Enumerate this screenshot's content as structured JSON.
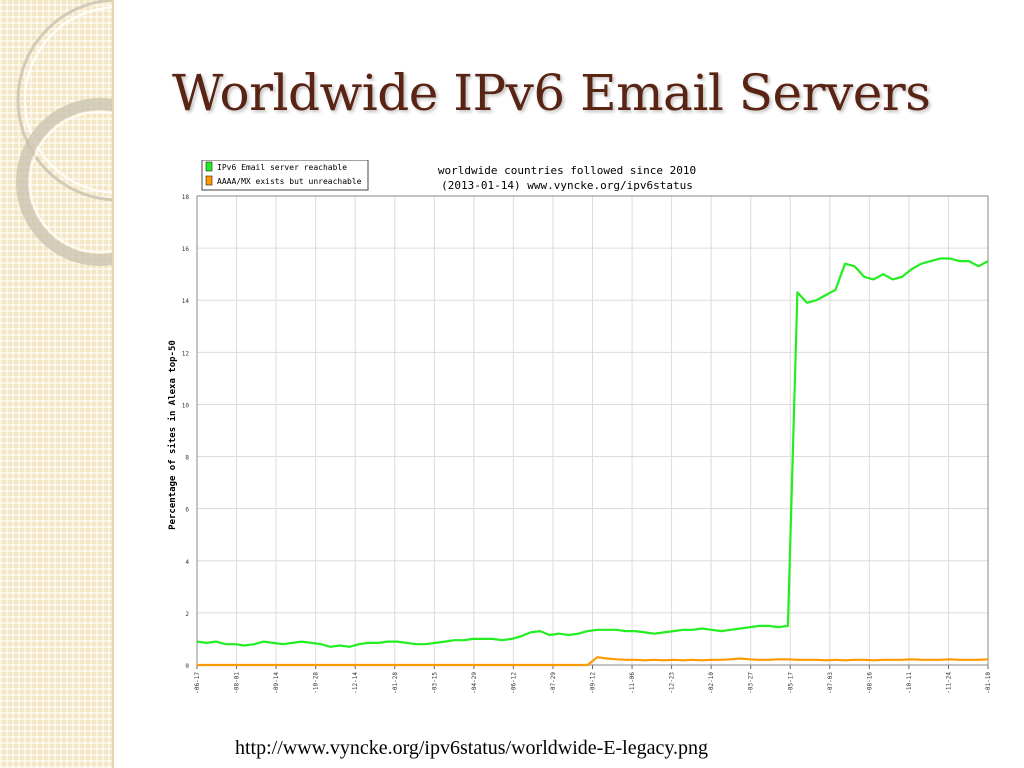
{
  "slide": {
    "title": "Worldwide IPv6 Email Servers",
    "source_url": "http://www.vyncke.org/ipv6status/worldwide-E-legacy.png"
  },
  "colors": {
    "title": "#5a2414",
    "sidebar": "#f3e6c4",
    "reachable": "#22ee22",
    "unreachable": "#ff9900",
    "grid": "#dcdcdc"
  },
  "chart_data": {
    "type": "line",
    "title": "worldwide countries followed since 2010",
    "subtitle": "(2013-01-14) www.vyncke.org/ipv6status",
    "ylabel": "Percentage of sites in Alexa top-50",
    "xlabel": "",
    "ylim": [
      0,
      18
    ],
    "yticks": [
      "0",
      "2",
      "4",
      "6",
      "8",
      "10",
      "12",
      "14",
      "16",
      "18"
    ],
    "xticks": [
      "-06-17",
      "-08-01",
      "-09-14",
      "-10-28",
      "-12-14",
      "-01-28",
      "-03-15",
      "-04-29",
      "-06-12",
      "-07-29",
      "-09-12",
      "-11-06",
      "-12-23",
      "-02-10",
      "-03-27",
      "-05-17",
      "-07-03",
      "-08-16",
      "-10-11",
      "-11-24",
      "-01-10"
    ],
    "grid": true,
    "legend_position": "top-left",
    "series": [
      {
        "name": "IPv6 Email server reachable",
        "color": "#22ee22",
        "values": [
          0.9,
          0.85,
          0.9,
          0.8,
          0.8,
          0.75,
          0.8,
          0.9,
          0.85,
          0.8,
          0.85,
          0.9,
          0.85,
          0.8,
          0.7,
          0.75,
          0.7,
          0.8,
          0.85,
          0.85,
          0.9,
          0.9,
          0.85,
          0.8,
          0.8,
          0.85,
          0.9,
          0.95,
          0.95,
          1.0,
          1.0,
          1.0,
          0.95,
          1.0,
          1.1,
          1.25,
          1.3,
          1.15,
          1.2,
          1.15,
          1.2,
          1.3,
          1.35,
          1.35,
          1.35,
          1.3,
          1.3,
          1.25,
          1.2,
          1.25,
          1.3,
          1.35,
          1.35,
          1.4,
          1.35,
          1.3,
          1.35,
          1.4,
          1.45,
          1.5,
          1.5,
          1.45,
          1.5,
          14.3,
          13.9,
          14.0,
          14.2,
          14.4,
          15.4,
          15.3,
          14.9,
          14.8,
          15.0,
          14.8,
          14.9,
          15.2,
          15.4,
          15.5,
          15.6,
          15.6,
          15.5,
          15.5,
          15.3,
          15.5
        ]
      },
      {
        "name": "AAAA/MX exists but unreachable",
        "color": "#ff9900",
        "values": [
          0,
          0,
          0,
          0,
          0,
          0,
          0,
          0,
          0,
          0,
          0,
          0,
          0,
          0,
          0,
          0,
          0,
          0,
          0,
          0,
          0,
          0,
          0,
          0,
          0,
          0,
          0,
          0,
          0,
          0,
          0,
          0,
          0,
          0,
          0,
          0,
          0,
          0,
          0,
          0,
          0,
          0,
          0.3,
          0.25,
          0.22,
          0.2,
          0.2,
          0.18,
          0.2,
          0.18,
          0.2,
          0.18,
          0.2,
          0.18,
          0.2,
          0.2,
          0.22,
          0.25,
          0.22,
          0.2,
          0.2,
          0.22,
          0.22,
          0.2,
          0.2,
          0.2,
          0.18,
          0.2,
          0.18,
          0.2,
          0.2,
          0.18,
          0.2,
          0.2,
          0.2,
          0.22,
          0.2,
          0.2,
          0.2,
          0.22,
          0.2,
          0.2,
          0.2,
          0.22
        ]
      }
    ]
  }
}
